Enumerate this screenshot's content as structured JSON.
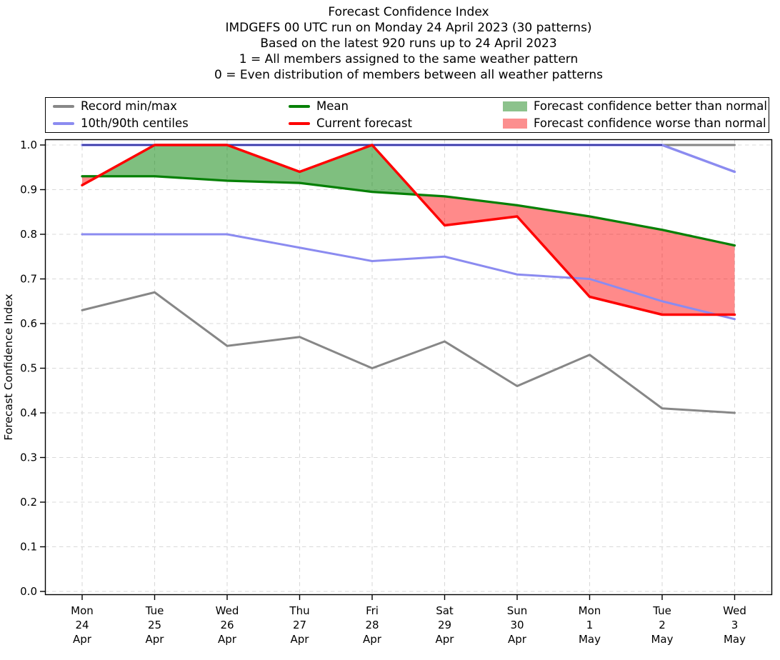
{
  "header": {
    "lines": [
      "Forecast Confidence Index",
      "IMDGEFS 00 UTC run on Monday 24 April 2023 (30 patterns)",
      "Based on the latest 920 runs up to 24 April 2023",
      "1 = All members assigned to the same weather pattern",
      "0 = Even distribution of members between all weather patterns"
    ]
  },
  "legend": {
    "items": [
      {
        "label": "Record min/max",
        "swatch": "line",
        "color": "#878787"
      },
      {
        "label": "10th/90th centiles",
        "swatch": "line",
        "color": "#8b8bf0"
      },
      {
        "label": "Mean",
        "swatch": "line",
        "color": "#068006"
      },
      {
        "label": "Current forecast",
        "swatch": "line",
        "color": "#fe0000"
      },
      {
        "label": "Forecast confidence better than normal",
        "swatch": "patch",
        "color": "#8cc28c"
      },
      {
        "label": "Forecast confidence worse than normal",
        "swatch": "patch",
        "color": "#fc8f8f"
      }
    ]
  },
  "axes": {
    "y_label": "Forecast Confidence Index",
    "y_ticks": [
      "0.0",
      "0.1",
      "0.2",
      "0.3",
      "0.4",
      "0.5",
      "0.6",
      "0.7",
      "0.8",
      "0.9",
      "1.0"
    ],
    "x_ticks": [
      [
        "Mon",
        "24",
        "Apr"
      ],
      [
        "Tue",
        "25",
        "Apr"
      ],
      [
        "Wed",
        "26",
        "Apr"
      ],
      [
        "Thu",
        "27",
        "Apr"
      ],
      [
        "Fri",
        "28",
        "Apr"
      ],
      [
        "Sat",
        "29",
        "Apr"
      ],
      [
        "Sun",
        "30",
        "Apr"
      ],
      [
        "Mon",
        "1",
        "May"
      ],
      [
        "Tue",
        "2",
        "May"
      ],
      [
        "Wed",
        "3",
        "May"
      ]
    ]
  },
  "colors": {
    "grid": "#d9d9d9",
    "axis": "#000000",
    "max_overlap_core": "#3a3aa2",
    "green_fill": "rgba(0,128,0,0.5)",
    "red_fill": "rgba(255,0,0,0.46)"
  },
  "chart_data": {
    "type": "line",
    "title": "Forecast Confidence Index",
    "xlabel": "",
    "ylabel": "Forecast Confidence Index",
    "ylim": [
      0.0,
      1.0
    ],
    "y_tick_step": 0.1,
    "grid": true,
    "legend_position": "top",
    "x_categories": [
      "Mon 24 Apr",
      "Tue 25 Apr",
      "Wed 26 Apr",
      "Thu 27 Apr",
      "Fri 28 Apr",
      "Sat 29 Apr",
      "Sun 30 Apr",
      "Mon 1 May",
      "Tue 2 May",
      "Wed 3 May"
    ],
    "series": [
      {
        "name": "Record max",
        "color": "#878787",
        "width": 3,
        "values": [
          1.0,
          1.0,
          1.0,
          1.0,
          1.0,
          1.0,
          1.0,
          1.0,
          1.0,
          1.0
        ]
      },
      {
        "name": "Record min",
        "color": "#878787",
        "width": 3,
        "values": [
          0.63,
          0.67,
          0.55,
          0.57,
          0.5,
          0.56,
          0.46,
          0.53,
          0.41,
          0.4
        ]
      },
      {
        "name": "90th centile",
        "color": "#8b8bf0",
        "width": 3.4,
        "values": [
          1.0,
          1.0,
          1.0,
          1.0,
          1.0,
          1.0,
          1.0,
          1.0,
          1.0,
          0.94
        ]
      },
      {
        "name": "10th centile",
        "color": "#8b8bf0",
        "width": 3,
        "values": [
          0.8,
          0.8,
          0.8,
          0.77,
          0.74,
          0.75,
          0.71,
          0.7,
          0.65,
          0.61
        ]
      },
      {
        "name": "Mean",
        "color": "#068006",
        "width": 3.2,
        "values": [
          0.93,
          0.93,
          0.92,
          0.915,
          0.895,
          0.885,
          0.865,
          0.84,
          0.81,
          0.775
        ]
      },
      {
        "name": "Current forecast",
        "color": "#fe0000",
        "width": 3.5,
        "values": [
          0.91,
          1.0,
          1.0,
          0.94,
          1.0,
          0.82,
          0.84,
          0.66,
          0.62,
          0.62
        ]
      }
    ],
    "fills": [
      {
        "name": "Forecast confidence better than normal",
        "between": [
          "Current forecast",
          "Mean"
        ],
        "condition": "forecast_above_mean",
        "color": "rgba(0,128,0,0.5)"
      },
      {
        "name": "Forecast confidence worse than normal",
        "between": [
          "Current forecast",
          "Mean"
        ],
        "condition": "forecast_below_mean",
        "color": "rgba(255,0,0,0.46)"
      }
    ]
  }
}
